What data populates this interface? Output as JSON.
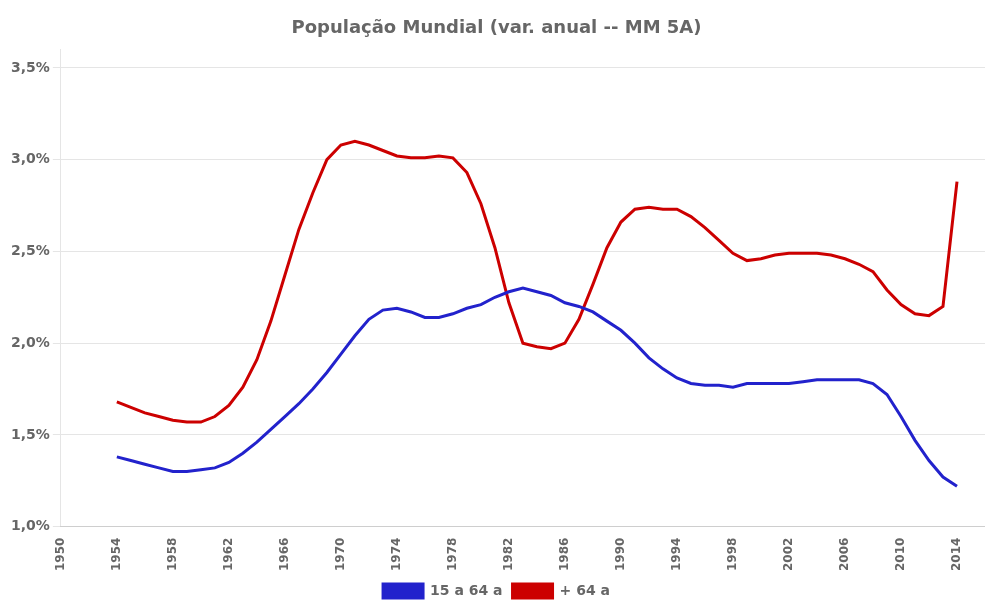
{
  "chart_data": {
    "type": "line",
    "title": "População Mundial (var. anual -- MM 5A)",
    "x": [
      1954,
      1955,
      1956,
      1957,
      1958,
      1959,
      1960,
      1961,
      1962,
      1963,
      1964,
      1965,
      1966,
      1967,
      1968,
      1969,
      1970,
      1971,
      1972,
      1973,
      1974,
      1975,
      1976,
      1977,
      1978,
      1979,
      1980,
      1981,
      1982,
      1983,
      1984,
      1985,
      1986,
      1987,
      1988,
      1989,
      1990,
      1991,
      1992,
      1993,
      1994,
      1995,
      1996,
      1997,
      1998,
      1999,
      2000,
      2001,
      2002,
      2003,
      2004,
      2005,
      2006,
      2007,
      2008,
      2009,
      2010,
      2011,
      2012,
      2013,
      2014
    ],
    "series": [
      {
        "name": "15 a 64 a",
        "color": "#2222cc",
        "values": [
          1.38,
          1.36,
          1.34,
          1.32,
          1.3,
          1.3,
          1.31,
          1.32,
          1.35,
          1.4,
          1.46,
          1.53,
          1.6,
          1.67,
          1.75,
          1.84,
          1.94,
          2.04,
          2.13,
          2.18,
          2.19,
          2.17,
          2.14,
          2.14,
          2.16,
          2.19,
          2.21,
          2.25,
          2.28,
          2.3,
          2.28,
          2.26,
          2.22,
          2.2,
          2.17,
          2.12,
          2.07,
          2.0,
          1.92,
          1.86,
          1.81,
          1.78,
          1.77,
          1.77,
          1.76,
          1.78,
          1.78,
          1.78,
          1.78,
          1.79,
          1.8,
          1.8,
          1.8,
          1.8,
          1.78,
          1.72,
          1.6,
          1.47,
          1.36,
          1.27,
          1.22
        ]
      },
      {
        "name": "+ 64 a",
        "color": "#cc0000",
        "values": [
          1.68,
          1.65,
          1.62,
          1.6,
          1.58,
          1.57,
          1.57,
          1.6,
          1.66,
          1.76,
          1.91,
          2.12,
          2.37,
          2.62,
          2.82,
          3.0,
          3.08,
          3.1,
          3.08,
          3.05,
          3.02,
          3.01,
          3.01,
          3.02,
          3.01,
          2.93,
          2.76,
          2.52,
          2.22,
          2.0,
          1.98,
          1.97,
          2.0,
          2.13,
          2.32,
          2.52,
          2.66,
          2.73,
          2.74,
          2.73,
          2.73,
          2.69,
          2.63,
          2.56,
          2.49,
          2.45,
          2.46,
          2.48,
          2.49,
          2.49,
          2.49,
          2.48,
          2.46,
          2.43,
          2.39,
          2.29,
          2.21,
          2.16,
          2.15,
          2.2,
          2.88
        ]
      }
    ],
    "xlim": [
      1950,
      2016
    ],
    "xticks": [
      1950,
      1954,
      1958,
      1962,
      1966,
      1970,
      1974,
      1978,
      1982,
      1986,
      1990,
      1994,
      1998,
      2002,
      2006,
      2010,
      2014
    ],
    "ylim": [
      1.0,
      3.6
    ],
    "yticks": [
      {
        "value": 1.0,
        "label": "1,0%"
      },
      {
        "value": 1.5,
        "label": "1,5%"
      },
      {
        "value": 2.0,
        "label": "2,0%"
      },
      {
        "value": 2.5,
        "label": "2,5%"
      },
      {
        "value": 3.0,
        "label": "3,0%"
      },
      {
        "value": 3.5,
        "label": "3,5%"
      }
    ],
    "grid": "y",
    "legend": "bottom"
  }
}
